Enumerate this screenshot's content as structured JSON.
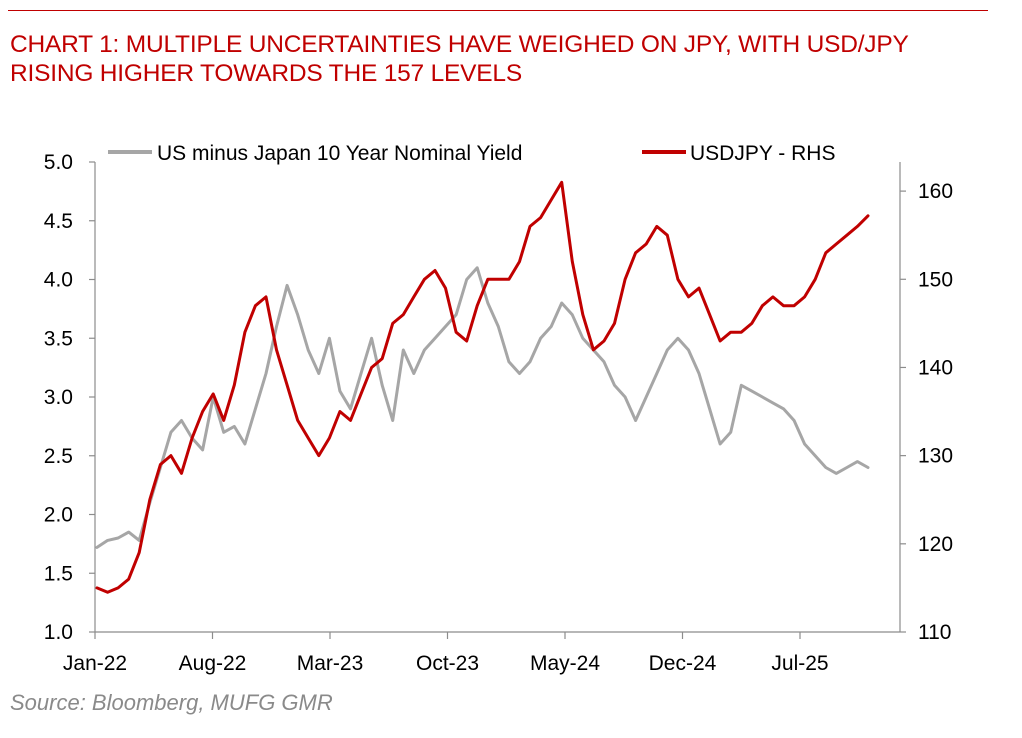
{
  "title": {
    "line1": "CHART 1: MULTIPLE UNCERTAINTIES HAVE WEIGHED ON JPY, WITH USD/JPY",
    "line2": "RISING HIGHER TOWARDS THE 157 LEVELS"
  },
  "source": "Source: Bloomberg, MUFG GMR",
  "colors": {
    "accent": "#c00000",
    "yield_series": "#a6a6a6",
    "usdjpy_series": "#c00000",
    "axis": "#8c8c8c"
  },
  "chart_data": {
    "type": "line",
    "x_start": "2022-01",
    "x_end": "2025-11",
    "x_ticks": [
      "Jan-22",
      "Aug-22",
      "Mar-23",
      "Oct-23",
      "May-24",
      "Dec-24",
      "Jul-25"
    ],
    "y_left": {
      "min": 1.0,
      "max": 5.0,
      "step": 0.5,
      "ticks": [
        "1.0",
        "1.5",
        "2.0",
        "2.5",
        "3.0",
        "3.5",
        "4.0",
        "4.5",
        "5.0"
      ]
    },
    "y_right": {
      "min": 110,
      "max": 163.3,
      "label": "RHS",
      "ticks": [
        "110",
        "120",
        "130",
        "140",
        "150",
        "160"
      ]
    },
    "legend": [
      "US minus Japan 10 Year Nominal Yield",
      "USDJPY - RHS"
    ],
    "series": [
      {
        "name": "US minus Japan 10 Year Nominal Yield",
        "axis": "left",
        "values": [
          1.72,
          1.78,
          1.8,
          1.85,
          1.78,
          2.1,
          2.4,
          2.7,
          2.8,
          2.65,
          2.55,
          3.0,
          2.7,
          2.75,
          2.6,
          2.9,
          3.2,
          3.6,
          3.95,
          3.7,
          3.4,
          3.2,
          3.5,
          3.05,
          2.9,
          3.2,
          3.5,
          3.1,
          2.8,
          3.4,
          3.2,
          3.4,
          3.5,
          3.6,
          3.7,
          4.0,
          4.1,
          3.8,
          3.6,
          3.3,
          3.2,
          3.3,
          3.5,
          3.6,
          3.8,
          3.7,
          3.5,
          3.4,
          3.3,
          3.1,
          3.0,
          2.8,
          3.0,
          3.2,
          3.4,
          3.5,
          3.4,
          3.2,
          2.9,
          2.6,
          2.7,
          3.1,
          3.05,
          3.0,
          2.95,
          2.9,
          2.8,
          2.6,
          2.5,
          2.4,
          2.35,
          2.4,
          2.45,
          2.4
        ]
      },
      {
        "name": "USDJPY - RHS",
        "axis": "right",
        "values": [
          115.0,
          114.5,
          115.0,
          116.0,
          119.0,
          125.0,
          129.0,
          130.0,
          128.0,
          132.0,
          135.0,
          137.0,
          134.0,
          138.0,
          144.0,
          147.0,
          148.0,
          142.0,
          138.0,
          134.0,
          132.0,
          130.0,
          132.0,
          135.0,
          134.0,
          137.0,
          140.0,
          141.0,
          145.0,
          146.0,
          148.0,
          150.0,
          151.0,
          149.0,
          144.0,
          143.0,
          147.0,
          150.0,
          150.0,
          150.0,
          152.0,
          156.0,
          157.0,
          159.0,
          161.0,
          152.0,
          146.0,
          142.0,
          143.0,
          145.0,
          150.0,
          153.0,
          154.0,
          156.0,
          155.0,
          150.0,
          148.0,
          149.0,
          146.0,
          143.0,
          144.0,
          144.0,
          145.0,
          147.0,
          148.0,
          147.0,
          147.0,
          148.0,
          150.0,
          153.0,
          154.0,
          155.0,
          156.0,
          157.2
        ]
      }
    ]
  }
}
